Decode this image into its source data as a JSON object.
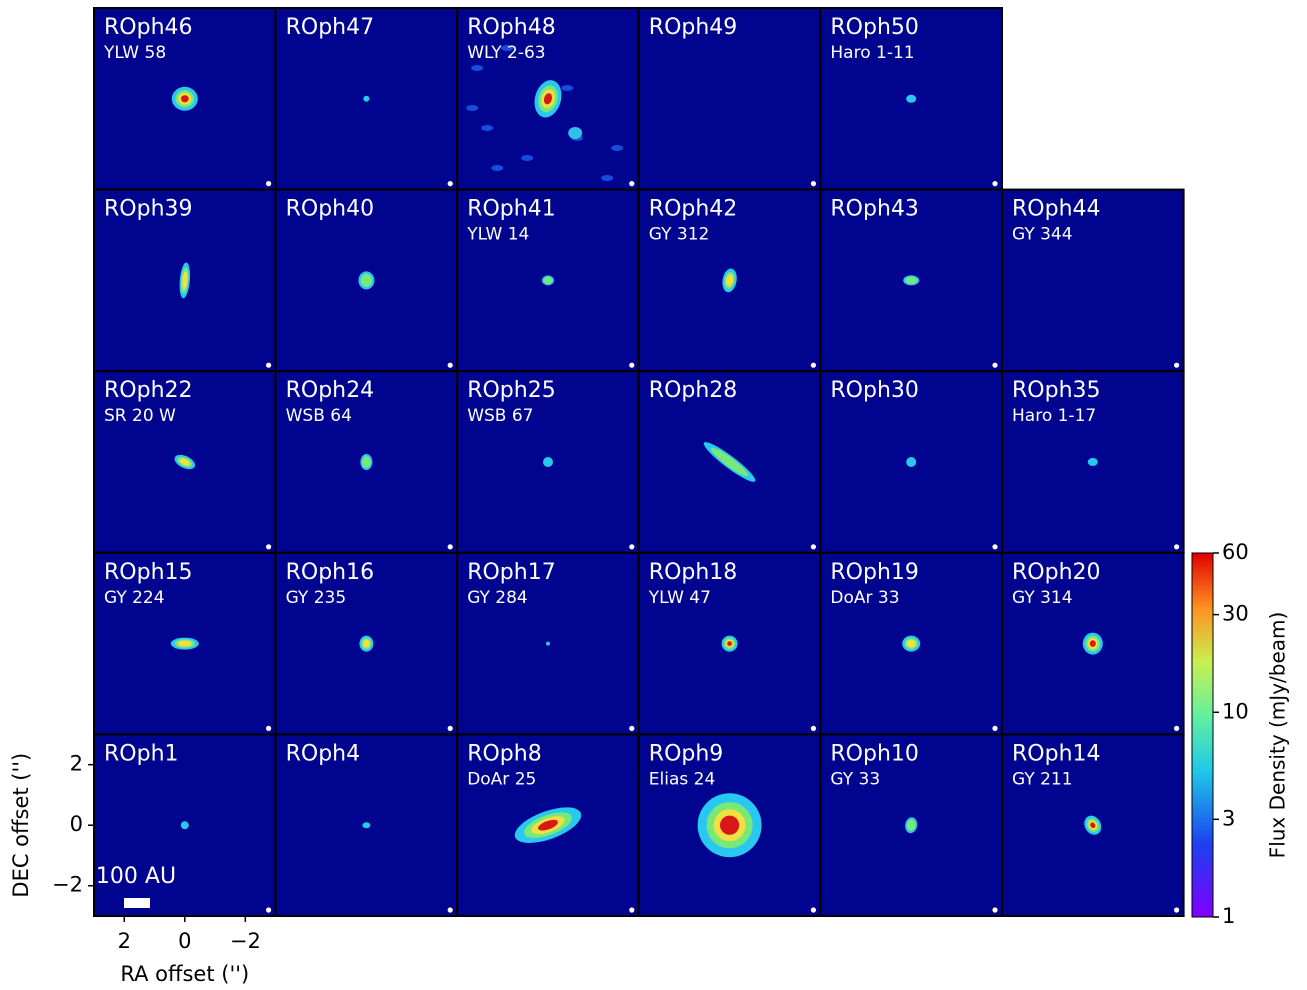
{
  "chart_data": {
    "type": "image_grid",
    "rows": [
      [
        {
          "name": "ROph46",
          "alias": "YLW 58"
        },
        {
          "name": "ROph47"
        },
        {
          "name": "ROph48",
          "alias": "WLY 2-63"
        },
        {
          "name": "ROph49"
        },
        {
          "name": "ROph50",
          "alias": "Haro 1-11"
        }
      ],
      [
        {
          "name": "ROph39"
        },
        {
          "name": "ROph40"
        },
        {
          "name": "ROph41",
          "alias": "YLW 14"
        },
        {
          "name": "ROph42",
          "alias": "GY 312"
        },
        {
          "name": "ROph43"
        },
        {
          "name": "ROph44",
          "alias": "GY 344"
        }
      ],
      [
        {
          "name": "ROph22",
          "alias": "SR 20 W"
        },
        {
          "name": "ROph24",
          "alias": "WSB 64"
        },
        {
          "name": "ROph25",
          "alias": "WSB 67"
        },
        {
          "name": "ROph28"
        },
        {
          "name": "ROph30"
        },
        {
          "name": "ROph35",
          "alias": "Haro 1-17"
        }
      ],
      [
        {
          "name": "ROph15",
          "alias": "GY 224"
        },
        {
          "name": "ROph16",
          "alias": "GY 235"
        },
        {
          "name": "ROph17",
          "alias": "GY 284"
        },
        {
          "name": "ROph18",
          "alias": "YLW 47"
        },
        {
          "name": "ROph19",
          "alias": "DoAr 33"
        },
        {
          "name": "ROph20",
          "alias": "GY 314"
        }
      ],
      [
        {
          "name": "ROph1"
        },
        {
          "name": "ROph4"
        },
        {
          "name": "ROph8",
          "alias": "DoAr 25"
        },
        {
          "name": "ROph9",
          "alias": "Elias 24"
        },
        {
          "name": "ROph10",
          "alias": "GY 33"
        },
        {
          "name": "ROph14",
          "alias": "GY 211"
        }
      ]
    ],
    "xlabel": "RA offset ('')",
    "ylabel": "DEC offset ('')",
    "xlim": [
      3,
      -3
    ],
    "ylim": [
      -3,
      3
    ],
    "xticks": [
      2,
      0,
      {
        "value": -2,
        "label": "−2"
      }
    ],
    "yticks": [
      {
        "value": -2,
        "label": "−2"
      },
      0,
      2
    ],
    "scale_bar_label": "100 AU",
    "colorbar": {
      "label": "Flux Density (mJy/beam)",
      "lim": [
        1,
        60
      ],
      "ticks": [
        1,
        3,
        10,
        30,
        60
      ],
      "log": true
    }
  }
}
